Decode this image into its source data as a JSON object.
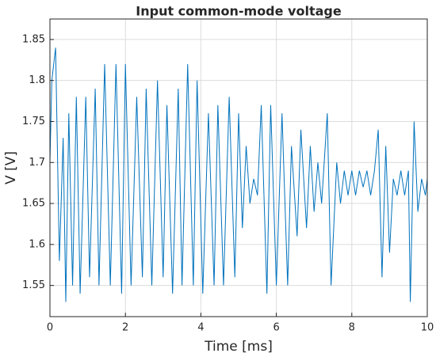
{
  "chart_data": {
    "type": "line",
    "title": "Input common-mode voltage",
    "x_label": "Time [ms]",
    "y_label": "V [V]",
    "xlim": [
      0,
      10
    ],
    "ylim": [
      1.512,
      1.875
    ],
    "xticks": [
      0,
      2,
      4,
      6,
      8,
      10
    ],
    "yticks": [
      1.55,
      1.6,
      1.65,
      1.7,
      1.75,
      1.8,
      1.85
    ],
    "grid": true,
    "series": [
      {
        "name": "V",
        "color": "#0072bd",
        "x": [
          0,
          0.05,
          0.15,
          0.25,
          0.35,
          0.42,
          0.5,
          0.6,
          0.7,
          0.8,
          0.95,
          1.05,
          1.2,
          1.3,
          1.45,
          1.6,
          1.75,
          1.9,
          2.0,
          2.15,
          2.3,
          2.45,
          2.55,
          2.7,
          2.85,
          3.0,
          3.1,
          3.25,
          3.4,
          3.5,
          3.65,
          3.8,
          3.9,
          4.05,
          4.2,
          4.35,
          4.45,
          4.6,
          4.75,
          4.9,
          5.0,
          5.1,
          5.2,
          5.3,
          5.4,
          5.5,
          5.6,
          5.75,
          5.85,
          6.0,
          6.15,
          6.3,
          6.4,
          6.55,
          6.65,
          6.8,
          6.9,
          7.0,
          7.1,
          7.2,
          7.35,
          7.45,
          7.6,
          7.7,
          7.8,
          7.9,
          8.0,
          8.1,
          8.2,
          8.3,
          8.4,
          8.5,
          8.6,
          8.7,
          8.8,
          8.9,
          9.0,
          9.1,
          9.2,
          9.3,
          9.4,
          9.5,
          9.55,
          9.65,
          9.75,
          9.85,
          9.95,
          10
        ],
        "values": [
          1.7,
          1.8,
          1.84,
          1.58,
          1.73,
          1.53,
          1.76,
          1.55,
          1.78,
          1.54,
          1.78,
          1.56,
          1.79,
          1.55,
          1.82,
          1.55,
          1.82,
          1.54,
          1.82,
          1.55,
          1.78,
          1.56,
          1.79,
          1.55,
          1.8,
          1.56,
          1.77,
          1.54,
          1.79,
          1.55,
          1.82,
          1.55,
          1.8,
          1.54,
          1.76,
          1.55,
          1.77,
          1.55,
          1.78,
          1.56,
          1.76,
          1.62,
          1.72,
          1.65,
          1.68,
          1.66,
          1.77,
          1.54,
          1.77,
          1.55,
          1.76,
          1.55,
          1.72,
          1.61,
          1.74,
          1.62,
          1.72,
          1.64,
          1.7,
          1.65,
          1.76,
          1.55,
          1.7,
          1.65,
          1.69,
          1.66,
          1.69,
          1.66,
          1.69,
          1.67,
          1.69,
          1.66,
          1.69,
          1.74,
          1.56,
          1.72,
          1.59,
          1.68,
          1.66,
          1.69,
          1.66,
          1.69,
          1.53,
          1.75,
          1.64,
          1.68,
          1.66,
          1.68
        ]
      }
    ]
  }
}
